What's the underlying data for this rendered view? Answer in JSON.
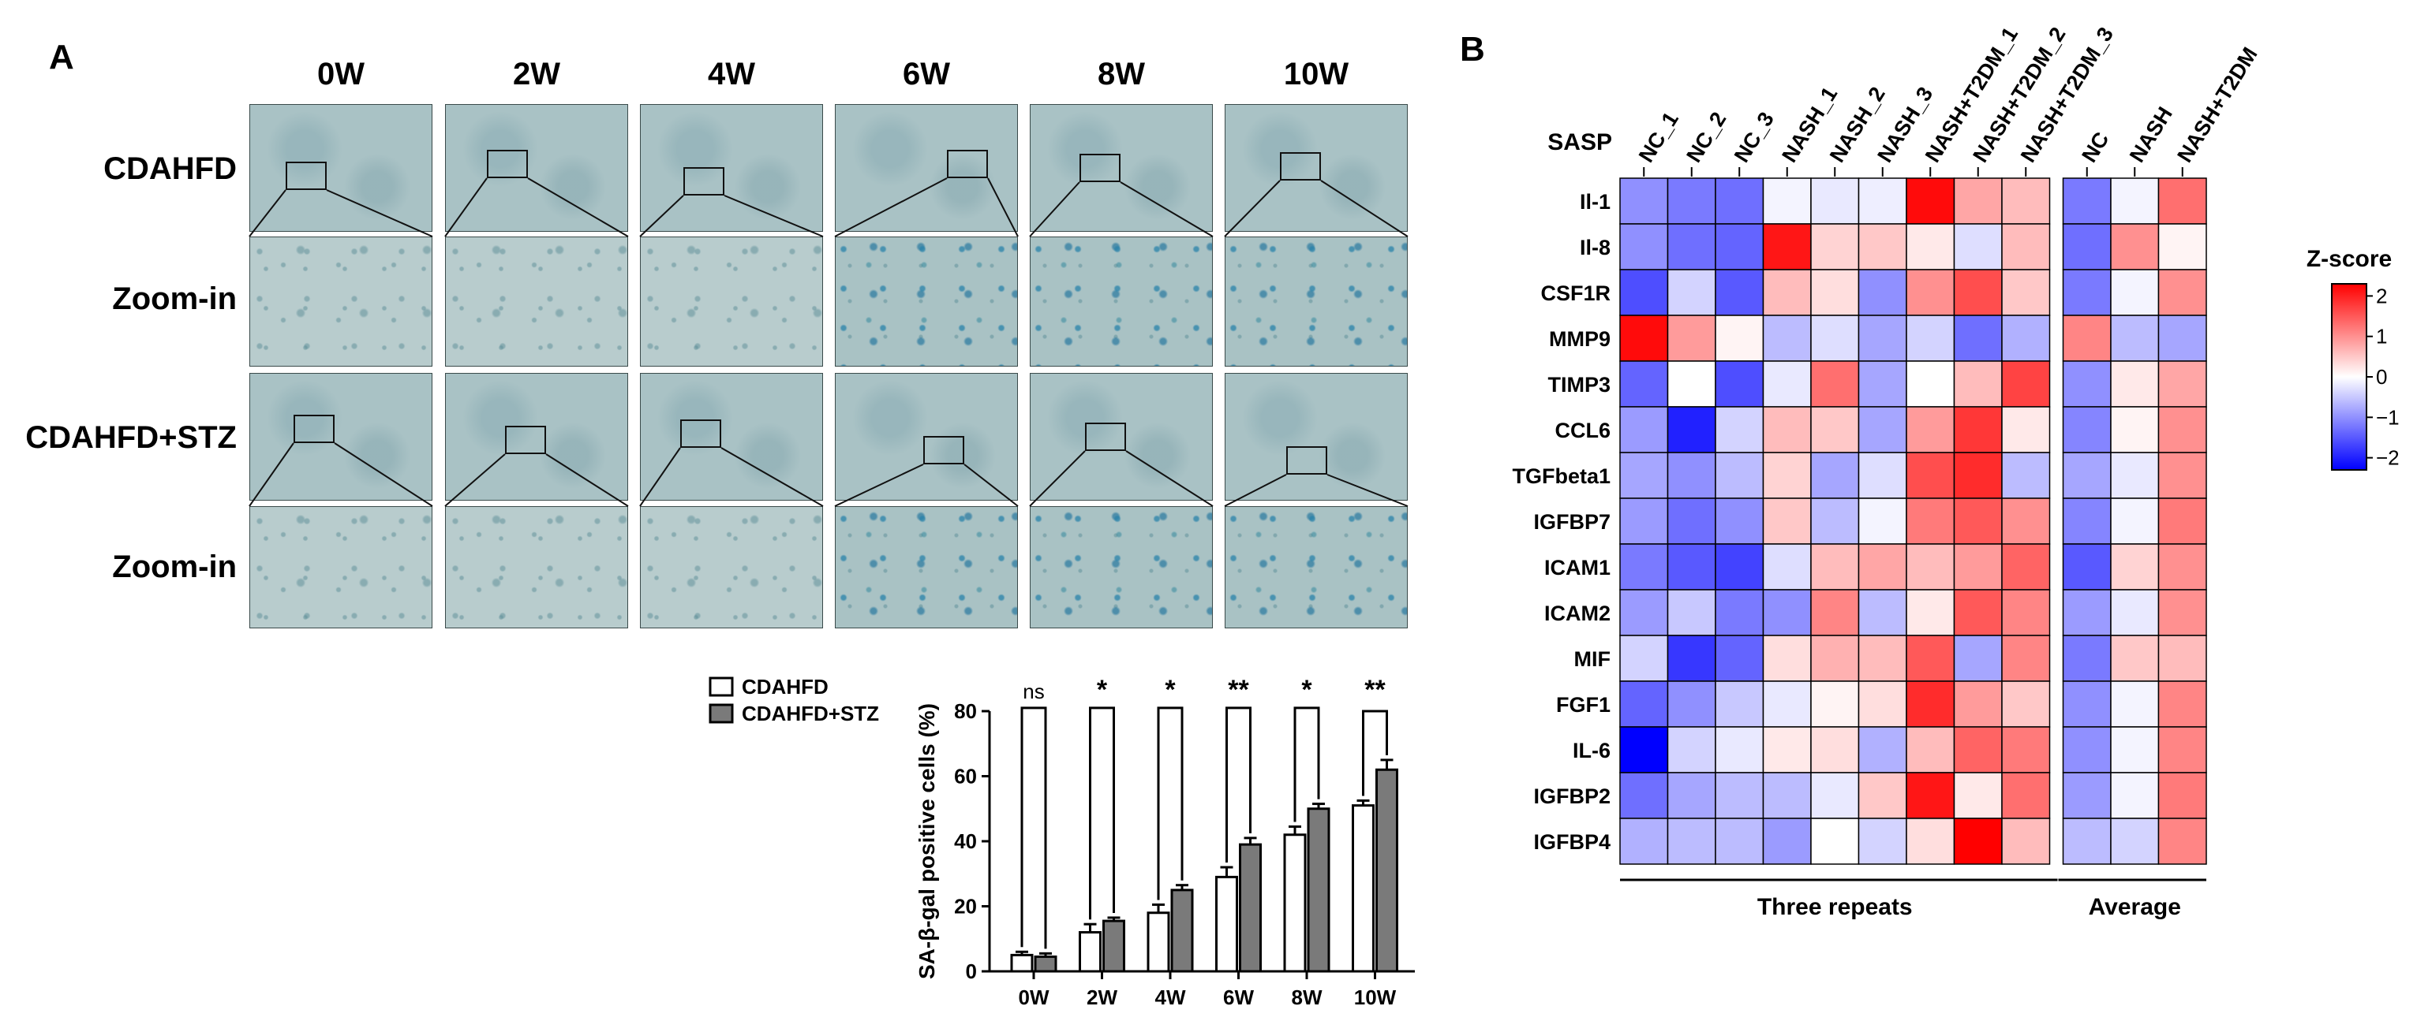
{
  "panel_a": {
    "letter": "A",
    "timepoints": [
      "0W",
      "2W",
      "4W",
      "6W",
      "8W",
      "10W"
    ],
    "row_labels": [
      "CDAHFD",
      "Zoom-in",
      "CDAHFD+STZ",
      "Zoom-in"
    ]
  },
  "panel_b": {
    "letter": "B"
  },
  "chart_data": [
    {
      "type": "bar",
      "ylabel": "SA-β-gal positive cells (%)",
      "xlabel": "",
      "categories": [
        "0W",
        "2W",
        "4W",
        "6W",
        "8W",
        "10W"
      ],
      "ylim": [
        0,
        80
      ],
      "yticks": [
        0,
        20,
        40,
        60,
        80
      ],
      "series": [
        {
          "name": "CDAHFD",
          "color": "#ffffff",
          "values": [
            5,
            12,
            18,
            29,
            42,
            51
          ],
          "errors": [
            1,
            2.5,
            2.5,
            3,
            2.5,
            1.5
          ]
        },
        {
          "name": "CDAHFD+STZ",
          "color": "#7a7a7a",
          "values": [
            4.5,
            15.5,
            25,
            39,
            50,
            62
          ],
          "errors": [
            1,
            1,
            1.5,
            2,
            1.5,
            3
          ]
        }
      ],
      "significance": [
        "ns",
        "*",
        "*",
        "**",
        "*",
        "**"
      ],
      "legend_position": "top-left"
    },
    {
      "type": "heatmap",
      "title": "SASP",
      "row_labels": [
        "Il-1",
        "Il-8",
        "CSF1R",
        "MMP9",
        "TIMP3",
        "CCL6",
        "TGFbeta1",
        "IGFBP7",
        "ICAM1",
        "ICAM2",
        "MIF",
        "FGF1",
        "IL-6",
        "IGFBP2",
        "IGFBP4"
      ],
      "column_labels_repeats": [
        "NC_1",
        "NC_2",
        "NC_3",
        "NASH_1",
        "NASH_2",
        "NASH_3",
        "NASH+T2DM_1",
        "NASH+T2DM_2",
        "NASH+T2DM_3"
      ],
      "column_labels_average": [
        "NC",
        "NASH",
        "NASH+T2DM"
      ],
      "group_labels": [
        "Three repeats",
        "Average"
      ],
      "colorbar_title": "Z-score",
      "colorbar_ticks": [
        "2",
        "1",
        "0",
        "−1",
        "−2"
      ],
      "colorbar_range": [
        -2.3,
        2.3
      ],
      "values_repeats": [
        [
          -1.0,
          -1.2,
          -1.3,
          -0.1,
          -0.2,
          -0.15,
          2.2,
          0.8,
          0.6
        ],
        [
          -1.0,
          -1.3,
          -1.4,
          2.1,
          0.4,
          0.5,
          0.2,
          -0.3,
          0.6
        ],
        [
          -1.6,
          -0.4,
          -1.5,
          0.6,
          0.3,
          -1.0,
          1.0,
          1.6,
          0.5
        ],
        [
          2.2,
          0.9,
          0.1,
          -0.6,
          -0.3,
          -0.8,
          -0.4,
          -1.3,
          -0.7
        ],
        [
          -1.4,
          0.0,
          -1.6,
          -0.2,
          1.3,
          -0.8,
          0.0,
          0.6,
          1.7
        ],
        [
          -0.9,
          -2.0,
          -0.4,
          0.6,
          0.5,
          -0.8,
          0.9,
          1.8,
          0.2
        ],
        [
          -0.8,
          -1.0,
          -0.6,
          0.4,
          -0.8,
          -0.3,
          1.6,
          1.9,
          -0.6
        ],
        [
          -0.9,
          -1.3,
          -1.0,
          0.5,
          -0.6,
          -0.1,
          1.2,
          1.5,
          1.0
        ],
        [
          -1.2,
          -1.5,
          -1.7,
          -0.3,
          0.6,
          0.8,
          0.6,
          0.9,
          1.4
        ],
        [
          -0.9,
          -0.5,
          -1.2,
          -1.0,
          1.1,
          -0.6,
          0.2,
          1.5,
          1.1
        ],
        [
          -0.4,
          -1.8,
          -1.4,
          0.3,
          0.7,
          0.6,
          1.5,
          -0.8,
          1.1
        ],
        [
          -1.4,
          -1.0,
          -0.5,
          -0.2,
          0.1,
          0.3,
          1.9,
          0.9,
          0.5
        ],
        [
          -2.3,
          -0.4,
          -0.2,
          0.2,
          0.3,
          -0.7,
          0.6,
          1.4,
          1.2
        ],
        [
          -1.3,
          -0.8,
          -0.6,
          -0.6,
          -0.2,
          0.5,
          2.1,
          0.2,
          1.3
        ],
        [
          -0.7,
          -0.6,
          -0.6,
          -0.9,
          0.0,
          -0.4,
          0.3,
          2.3,
          0.6
        ]
      ],
      "values_average": [
        [
          -1.2,
          -0.1,
          1.3
        ],
        [
          -1.3,
          1.0,
          0.1
        ],
        [
          -1.2,
          -0.1,
          1.0
        ],
        [
          1.1,
          -0.6,
          -0.8
        ],
        [
          -1.0,
          0.2,
          0.8
        ],
        [
          -1.1,
          0.1,
          1.0
        ],
        [
          -0.8,
          -0.2,
          1.0
        ],
        [
          -1.1,
          -0.1,
          1.2
        ],
        [
          -1.5,
          0.4,
          1.0
        ],
        [
          -0.9,
          -0.2,
          1.0
        ],
        [
          -1.2,
          0.5,
          0.6
        ],
        [
          -1.0,
          -0.1,
          1.1
        ],
        [
          -1.0,
          -0.1,
          1.1
        ],
        [
          -0.9,
          -0.1,
          1.2
        ],
        [
          -0.6,
          -0.4,
          1.1
        ]
      ]
    }
  ]
}
